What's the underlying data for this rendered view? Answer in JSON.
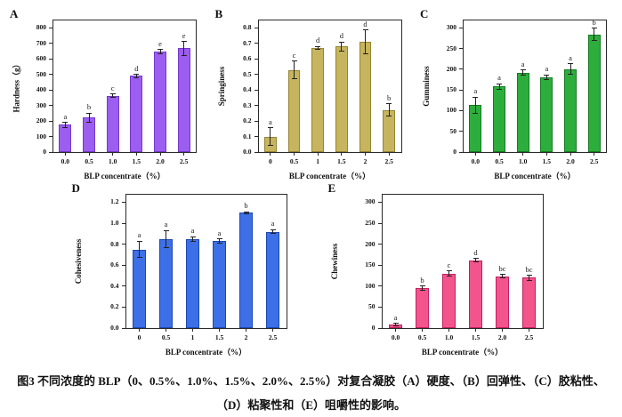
{
  "caption": {
    "line1": "图3 不同浓度的 BLP（0、0.5%、1.0%、1.5%、2.0%、2.5%）对复合凝胶（A）硬度、（B）回弹性、（C）胶粘性、",
    "line2": "（D）粘聚性和（E）咀嚼性的影响。"
  },
  "chart_data": [
    {
      "type": "bar",
      "panel": "A",
      "ylabel": "Hardness（g）",
      "xlabel": "BLP concentrate（%）",
      "categories": [
        "0.0",
        "0.5",
        "1.0",
        "1.5",
        "2.0",
        "2.5"
      ],
      "values": [
        175,
        222,
        362,
        490,
        648,
        668
      ],
      "errors": [
        15,
        28,
        12,
        10,
        12,
        45
      ],
      "sig_letters": [
        "a",
        "b",
        "c",
        "d",
        "e",
        "e"
      ],
      "yticks": [
        "0",
        "100",
        "200",
        "300",
        "400",
        "500",
        "600",
        "700",
        "800"
      ],
      "ylim": [
        0,
        800
      ],
      "bar_color": "#9B5EF0",
      "bar_border": "#7438C8",
      "legend": "none",
      "grid": false
    },
    {
      "type": "bar",
      "panel": "B",
      "ylabel": "Springiness",
      "xlabel": "BLP concentrate（%）",
      "categories": [
        "0",
        "0.5",
        "1",
        "1.5",
        "2",
        "2.5"
      ],
      "values": [
        0.1,
        0.53,
        0.67,
        0.68,
        0.71,
        0.27
      ],
      "errors": [
        0.055,
        0.055,
        0.01,
        0.03,
        0.075,
        0.04
      ],
      "sig_letters": [
        "a",
        "c",
        "d",
        "d",
        "d",
        "b"
      ],
      "yticks": [
        "0.0",
        "0.1",
        "0.2",
        "0.3",
        "0.4",
        "0.5",
        "0.6",
        "0.7",
        "0.8"
      ],
      "ylim": [
        0,
        0.8
      ],
      "bar_color": "#C6B45F",
      "bar_border": "#968430",
      "legend": "none",
      "grid": false
    },
    {
      "type": "bar",
      "panel": "C",
      "ylabel": "Gumminess",
      "xlabel": "BLP concentrate（%）",
      "categories": [
        "0.0",
        "0.5",
        "1.0",
        "1.5",
        "2.0",
        "2.5"
      ],
      "values": [
        113,
        158,
        192,
        181,
        200,
        284
      ],
      "errors": [
        20,
        7,
        6,
        5,
        13,
        15
      ],
      "sig_letters": [
        "a",
        "a",
        "a",
        "a",
        "a",
        "b"
      ],
      "yticks": [
        "0",
        "50",
        "100",
        "150",
        "200",
        "250",
        "300"
      ],
      "ylim": [
        0,
        300
      ],
      "bar_color": "#2DAE3C",
      "bar_border": "#137A22",
      "legend": "none",
      "grid": false
    },
    {
      "type": "bar",
      "panel": "D",
      "ylabel": "Cohesiveness",
      "xlabel": "BLP concentrate（%）",
      "categories": [
        "0",
        "0.5",
        "1",
        "1.5",
        "2",
        "2.5"
      ],
      "values": [
        0.75,
        0.85,
        0.85,
        0.83,
        1.1,
        0.92
      ],
      "errors": [
        0.08,
        0.08,
        0.02,
        0.02,
        0.01,
        0.02
      ],
      "sig_letters": [
        "a",
        "a",
        "a",
        "a",
        "b",
        "a"
      ],
      "yticks": [
        "0.0",
        "0.2",
        "0.4",
        "0.6",
        "0.8",
        "1.0",
        "1.2"
      ],
      "ylim": [
        0,
        1.2
      ],
      "bar_color": "#3D6FE6",
      "bar_border": "#1C47B4",
      "legend": "none",
      "grid": false
    },
    {
      "type": "bar",
      "panel": "E",
      "ylabel": "Chewiness",
      "xlabel": "BLP concentrate（%）",
      "categories": [
        "0.0",
        "0.5",
        "1.0",
        "1.5",
        "2.0",
        "2.5"
      ],
      "values": [
        8,
        95,
        130,
        162,
        124,
        120
      ],
      "errors": [
        3,
        5,
        6,
        4,
        4,
        6
      ],
      "sig_letters": [
        "a",
        "b",
        "c",
        "d",
        "bc",
        "bc"
      ],
      "yticks": [
        "0",
        "50",
        "100",
        "150",
        "200",
        "250",
        "300"
      ],
      "ylim": [
        0,
        300
      ],
      "bar_color": "#F2548C",
      "bar_border": "#C21F5E",
      "legend": "none",
      "grid": false
    }
  ]
}
